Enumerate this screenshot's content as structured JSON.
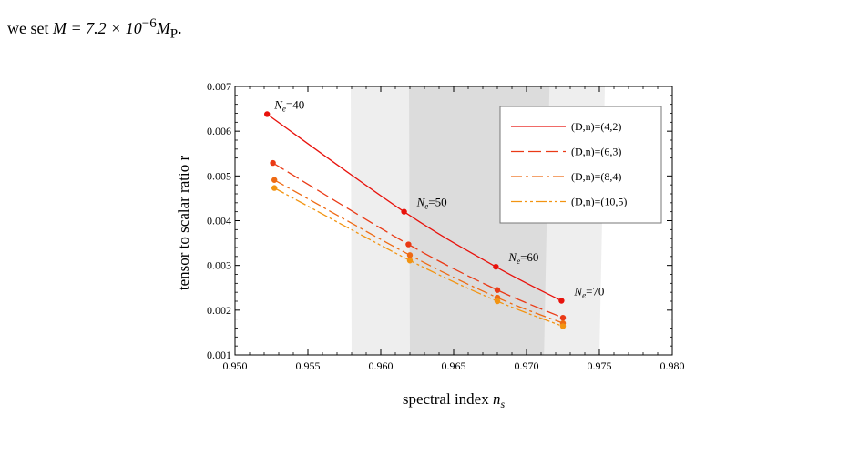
{
  "intro": {
    "prefix": "we set",
    "math": "M = 7.2 × 10",
    "exponent": "−6",
    "suffix": "M",
    "suffix_sub": "P",
    "end": "."
  },
  "chart_data": {
    "type": "line",
    "xlabel": "spectral index n_s",
    "xlabel_main": "spectral index ",
    "xlabel_var": "n",
    "xlabel_sub": "s",
    "ylabel": "tensor to scalar ratio r",
    "xlim": [
      0.95,
      0.98
    ],
    "ylim": [
      0.001,
      0.007
    ],
    "xticks": [
      "0.950",
      "0.955",
      "0.960",
      "0.965",
      "0.970",
      "0.975",
      "0.980"
    ],
    "yticks": [
      "0.001",
      "0.002",
      "0.003",
      "0.004",
      "0.005",
      "0.006",
      "0.007"
    ],
    "bands": [
      {
        "name": "outer",
        "x": [
          0.958,
          0.975
        ],
        "color": "#eeeeee"
      },
      {
        "name": "inner",
        "x": [
          0.962,
          0.9712
        ],
        "color": "#dcdcdc"
      }
    ],
    "legend_position": "top-right",
    "series": [
      {
        "name": "(D,n)=(4,2)",
        "color": "#e8120c",
        "dash": "solid",
        "points": [
          [
            0.9522,
            0.00638
          ],
          [
            0.9616,
            0.0042
          ],
          [
            0.9679,
            0.00297
          ],
          [
            0.9724,
            0.00221
          ]
        ]
      },
      {
        "name": "(D,n)=(6,3)",
        "color": "#ea3a16",
        "dash": "longdash",
        "points": [
          [
            0.9526,
            0.00529
          ],
          [
            0.9619,
            0.00347
          ],
          [
            0.968,
            0.00245
          ],
          [
            0.9725,
            0.00183
          ]
        ]
      },
      {
        "name": "(D,n)=(8,4)",
        "color": "#ee6a14",
        "dash": "dashdot",
        "points": [
          [
            0.9527,
            0.00491
          ],
          [
            0.962,
            0.00323
          ],
          [
            0.968,
            0.00228
          ],
          [
            0.9725,
            0.00171
          ]
        ]
      },
      {
        "name": "(D,n)=(10,5)",
        "color": "#f29412",
        "dash": "dashdotdot",
        "points": [
          [
            0.9527,
            0.00473
          ],
          [
            0.962,
            0.00311
          ],
          [
            0.968,
            0.0022
          ],
          [
            0.9725,
            0.00164
          ]
        ]
      }
    ],
    "annotations": [
      {
        "prefix": "N",
        "sub": "e",
        "value": "=40",
        "anchor": [
          0.9522,
          0.00638
        ]
      },
      {
        "prefix": "N",
        "sub": "e",
        "value": "=50",
        "anchor": [
          0.9616,
          0.0042
        ]
      },
      {
        "prefix": "N",
        "sub": "e",
        "value": "=60",
        "anchor": [
          0.9679,
          0.00297
        ]
      },
      {
        "prefix": "N",
        "sub": "e",
        "value": "=70",
        "anchor": [
          0.9724,
          0.00221
        ]
      }
    ]
  }
}
